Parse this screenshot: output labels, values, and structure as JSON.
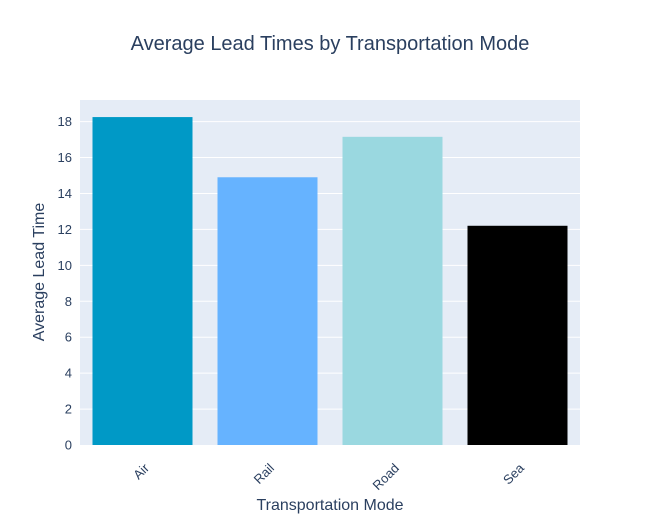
{
  "chart_data": {
    "type": "bar",
    "title": "Average Lead Times by Transportation Mode",
    "xlabel": "Transportation Mode",
    "ylabel": "Average Lead Time",
    "categories": [
      "Air",
      "Rail",
      "Road",
      "Sea"
    ],
    "values": [
      18.25,
      14.9,
      17.15,
      12.2
    ],
    "colors": [
      "#0099c6",
      "#66b3ff",
      "#9ad8e0",
      "#000000"
    ],
    "ylim": [
      0,
      19.2
    ],
    "yticks": [
      0,
      2,
      4,
      6,
      8,
      10,
      12,
      14,
      16,
      18
    ],
    "grid": true,
    "legend": "none"
  },
  "theme": {
    "plot_background": "#e5ecf6",
    "grid_color": "#ffffff",
    "text_color": "#2a3f5f",
    "paper_background": "#ffffff"
  }
}
